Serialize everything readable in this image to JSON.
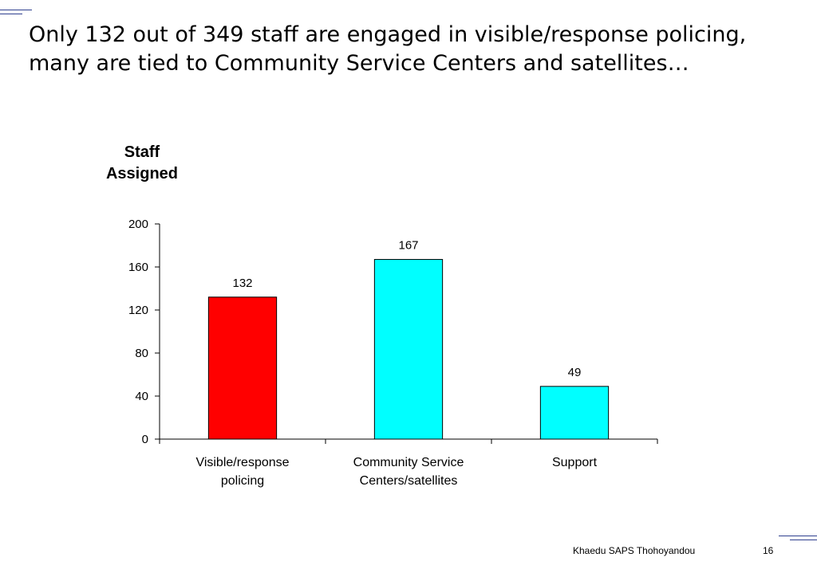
{
  "slide": {
    "title": "Only 132 out of 349 staff are engaged in visible/response policing, many are tied to Community Service Centers and satellites…",
    "footer": "Khaedu SAPS Thohoyandou",
    "page_number": "16"
  },
  "colors": {
    "accent_lines": "#2f3f8f",
    "bar_visible": "#ff0000",
    "bar_other": "#00ffff"
  },
  "chart_data": {
    "type": "bar",
    "ylabel": "Staff\nAssigned",
    "categories": [
      "Visible/response\npolicing",
      "Community Service\nCenters/satellites",
      "Support"
    ],
    "values": [
      132,
      167,
      49
    ],
    "data_labels": [
      "132",
      "167",
      "49"
    ],
    "bar_colors": [
      "#ff0000",
      "#00ffff",
      "#00ffff"
    ],
    "ylim": [
      0,
      200
    ],
    "yticks": [
      "0",
      "40",
      "80",
      "120",
      "160",
      "200"
    ],
    "grid": false,
    "legend": "none"
  }
}
